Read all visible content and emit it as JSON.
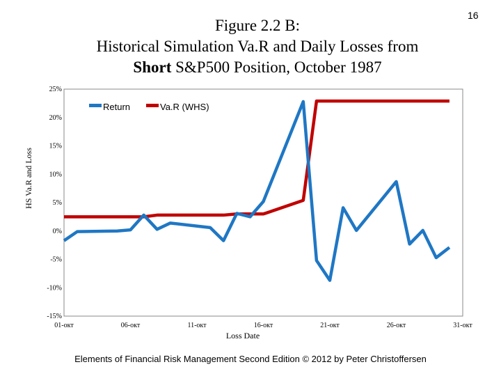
{
  "slide": {
    "page_number": "16",
    "title_line1": "Figure 2.2 B:",
    "title_line2": "Historical Simulation Va.R and Daily Losses from",
    "title_line3_bold": "Short",
    "title_line3_rest": " S&P500 Position, October 1987",
    "footer": "Elements of Financial Risk Management Second Edition © 2012  by Peter Christoffersen"
  },
  "chart_data": {
    "type": "line",
    "title": "",
    "xlabel": "Loss Date",
    "ylabel": "HS Va.R and Loss",
    "x": [
      "01-Oct",
      "02-Oct",
      "05-Oct",
      "06-Oct",
      "07-Oct",
      "08-Oct",
      "09-Oct",
      "12-Oct",
      "13-Oct",
      "14-Oct",
      "15-Oct",
      "16-Oct",
      "19-Oct",
      "20-Oct",
      "21-Oct",
      "22-Oct",
      "23-Oct",
      "26-Oct",
      "27-Oct",
      "28-Oct",
      "29-Oct",
      "30-Oct"
    ],
    "x_numeric": [
      1,
      2,
      5,
      6,
      7,
      8,
      9,
      12,
      13,
      14,
      15,
      16,
      19,
      20,
      21,
      22,
      23,
      26,
      27,
      28,
      29,
      30
    ],
    "xlim": [
      1,
      31
    ],
    "xticks": [
      1,
      6,
      11,
      16,
      21,
      26,
      31
    ],
    "xtick_labels": [
      "01-oкт",
      "06-oкт",
      "11-oкт",
      "16-oкт",
      "21-oкт",
      "26-oкт",
      "31-oкт"
    ],
    "ylim": [
      -0.15,
      0.25
    ],
    "yticks": [
      -0.15,
      -0.1,
      -0.05,
      0,
      0.05,
      0.1,
      0.15,
      0.2,
      0.25
    ],
    "ytick_labels": [
      "-15%",
      "-10%",
      "-5%",
      "0%",
      "5%",
      "10%",
      "15%",
      "20%",
      "25%"
    ],
    "grid": false,
    "legend_position": "top-left",
    "series": [
      {
        "name": "Return",
        "color": "#1f77c4",
        "values": [
          -0.017,
          -0.001,
          0.0,
          0.002,
          0.028,
          0.003,
          0.014,
          0.006,
          -0.017,
          0.031,
          0.025,
          0.052,
          0.228,
          -0.052,
          -0.087,
          0.041,
          0.001,
          0.087,
          -0.023,
          0.001,
          -0.047,
          -0.029
        ]
      },
      {
        "name": "Va.R (WHS)",
        "color": "#c00000",
        "values": [
          0.025,
          0.025,
          0.025,
          0.025,
          0.025,
          0.028,
          0.028,
          0.028,
          0.028,
          0.03,
          0.03,
          0.03,
          0.054,
          0.229,
          0.229,
          0.229,
          0.229,
          0.229,
          0.229,
          0.229,
          0.229,
          0.229
        ]
      }
    ]
  }
}
